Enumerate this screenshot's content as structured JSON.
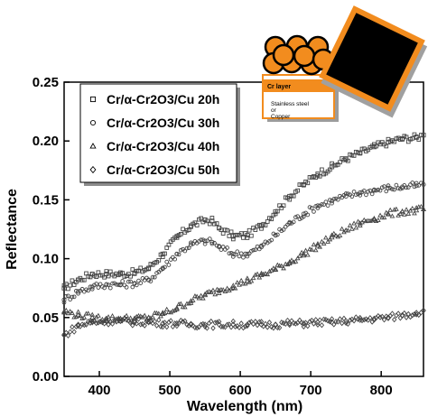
{
  "chart_data": {
    "type": "scatter",
    "title": "",
    "xlabel": "Wavelength (nm)",
    "ylabel": "Reflectance",
    "xlim": [
      350,
      860
    ],
    "ylim": [
      0.0,
      0.25
    ],
    "x_ticks": [
      400,
      500,
      600,
      700,
      800
    ],
    "x_tick_labels": [
      "400",
      "500",
      "600",
      "700",
      "800"
    ],
    "y_ticks": [
      0.0,
      0.05,
      0.1,
      0.15,
      0.2,
      0.25
    ],
    "y_tick_labels": [
      "0.00",
      "0.05",
      "0.10",
      "0.15",
      "0.20",
      "0.25"
    ],
    "legend_position": "top-left",
    "series": [
      {
        "name": "Cr/α-Cr2O3/Cu 20h",
        "marker": "square",
        "x": [
          350,
          370,
          390,
          410,
          430,
          450,
          470,
          490,
          510,
          530,
          550,
          560,
          570,
          590,
          610,
          630,
          650,
          670,
          690,
          710,
          730,
          750,
          770,
          790,
          810,
          830,
          850,
          860
        ],
        "y": [
          0.075,
          0.082,
          0.087,
          0.087,
          0.087,
          0.088,
          0.092,
          0.104,
          0.118,
          0.128,
          0.133,
          0.132,
          0.126,
          0.119,
          0.12,
          0.128,
          0.14,
          0.153,
          0.163,
          0.172,
          0.178,
          0.185,
          0.19,
          0.195,
          0.199,
          0.202,
          0.203,
          0.205
        ]
      },
      {
        "name": "Cr/α-Cr2O3/Cu 30h",
        "marker": "circle",
        "x": [
          350,
          370,
          390,
          410,
          430,
          450,
          470,
          490,
          510,
          530,
          550,
          560,
          570,
          590,
          610,
          630,
          650,
          670,
          690,
          710,
          730,
          750,
          770,
          790,
          810,
          830,
          850,
          860
        ],
        "y": [
          0.065,
          0.072,
          0.076,
          0.078,
          0.078,
          0.079,
          0.082,
          0.092,
          0.104,
          0.112,
          0.115,
          0.114,
          0.11,
          0.104,
          0.104,
          0.11,
          0.12,
          0.13,
          0.138,
          0.145,
          0.149,
          0.153,
          0.156,
          0.158,
          0.16,
          0.161,
          0.162,
          0.163
        ]
      },
      {
        "name": "Cr/α-Cr2O3/Cu 40h",
        "marker": "triangle",
        "x": [
          350,
          370,
          390,
          410,
          430,
          450,
          470,
          490,
          510,
          530,
          550,
          570,
          590,
          610,
          630,
          650,
          670,
          690,
          710,
          730,
          750,
          770,
          790,
          810,
          830,
          850,
          860
        ],
        "y": [
          0.055,
          0.052,
          0.05,
          0.049,
          0.049,
          0.049,
          0.05,
          0.053,
          0.058,
          0.064,
          0.069,
          0.073,
          0.077,
          0.081,
          0.086,
          0.091,
          0.097,
          0.104,
          0.111,
          0.118,
          0.124,
          0.13,
          0.134,
          0.138,
          0.14,
          0.141,
          0.142
        ]
      },
      {
        "name": "Cr/α-Cr2O3/Cu 50h",
        "marker": "diamond",
        "x": [
          350,
          370,
          390,
          410,
          430,
          450,
          470,
          490,
          510,
          530,
          550,
          570,
          590,
          610,
          630,
          650,
          670,
          690,
          710,
          730,
          750,
          770,
          790,
          810,
          830,
          850,
          860
        ],
        "y": [
          0.035,
          0.043,
          0.046,
          0.047,
          0.047,
          0.046,
          0.046,
          0.045,
          0.045,
          0.044,
          0.044,
          0.044,
          0.044,
          0.044,
          0.044,
          0.044,
          0.045,
          0.045,
          0.046,
          0.046,
          0.047,
          0.048,
          0.049,
          0.05,
          0.052,
          0.054,
          0.056
        ]
      }
    ]
  },
  "inset": {
    "layer_label": "Cr layer",
    "substrate_label_1": "Stainless steel",
    "substrate_label_2": "or",
    "substrate_label_3": "Copper",
    "sphere_color": "#f28c1e",
    "frame_color": "#f28c1e",
    "square_color": "#000000"
  }
}
